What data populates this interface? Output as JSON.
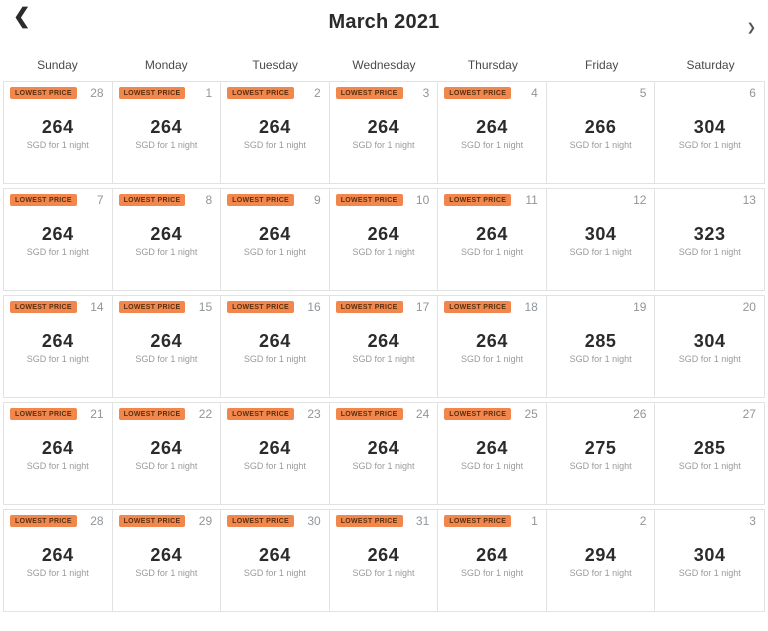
{
  "colors": {
    "badge_bg": "#F2874E",
    "badge_text": "#59300F",
    "border": "#E2E2E2",
    "price_text": "#2B2B2B"
  },
  "header": {
    "title": "March 2021",
    "prev_icon": "❮",
    "next_icon": "❯"
  },
  "weekdays": [
    "Sunday",
    "Monday",
    "Tuesday",
    "Wednesday",
    "Thursday",
    "Friday",
    "Saturday"
  ],
  "labels": {
    "lowest_price_badge": "LOWEST PRICE",
    "price_unit": "SGD for 1 night"
  },
  "weeks": [
    [
      {
        "day": "28",
        "price": "264",
        "lowest": true
      },
      {
        "day": "1",
        "price": "264",
        "lowest": true
      },
      {
        "day": "2",
        "price": "264",
        "lowest": true
      },
      {
        "day": "3",
        "price": "264",
        "lowest": true
      },
      {
        "day": "4",
        "price": "264",
        "lowest": true
      },
      {
        "day": "5",
        "price": "266",
        "lowest": false
      },
      {
        "day": "6",
        "price": "304",
        "lowest": false
      }
    ],
    [
      {
        "day": "7",
        "price": "264",
        "lowest": true
      },
      {
        "day": "8",
        "price": "264",
        "lowest": true
      },
      {
        "day": "9",
        "price": "264",
        "lowest": true
      },
      {
        "day": "10",
        "price": "264",
        "lowest": true
      },
      {
        "day": "11",
        "price": "264",
        "lowest": true
      },
      {
        "day": "12",
        "price": "304",
        "lowest": false
      },
      {
        "day": "13",
        "price": "323",
        "lowest": false
      }
    ],
    [
      {
        "day": "14",
        "price": "264",
        "lowest": true
      },
      {
        "day": "15",
        "price": "264",
        "lowest": true
      },
      {
        "day": "16",
        "price": "264",
        "lowest": true
      },
      {
        "day": "17",
        "price": "264",
        "lowest": true
      },
      {
        "day": "18",
        "price": "264",
        "lowest": true
      },
      {
        "day": "19",
        "price": "285",
        "lowest": false
      },
      {
        "day": "20",
        "price": "304",
        "lowest": false
      }
    ],
    [
      {
        "day": "21",
        "price": "264",
        "lowest": true
      },
      {
        "day": "22",
        "price": "264",
        "lowest": true
      },
      {
        "day": "23",
        "price": "264",
        "lowest": true
      },
      {
        "day": "24",
        "price": "264",
        "lowest": true
      },
      {
        "day": "25",
        "price": "264",
        "lowest": true
      },
      {
        "day": "26",
        "price": "275",
        "lowest": false
      },
      {
        "day": "27",
        "price": "285",
        "lowest": false
      }
    ],
    [
      {
        "day": "28",
        "price": "264",
        "lowest": true
      },
      {
        "day": "29",
        "price": "264",
        "lowest": true
      },
      {
        "day": "30",
        "price": "264",
        "lowest": true
      },
      {
        "day": "31",
        "price": "264",
        "lowest": true
      },
      {
        "day": "1",
        "price": "264",
        "lowest": true
      },
      {
        "day": "2",
        "price": "294",
        "lowest": false
      },
      {
        "day": "3",
        "price": "304",
        "lowest": false
      }
    ]
  ]
}
